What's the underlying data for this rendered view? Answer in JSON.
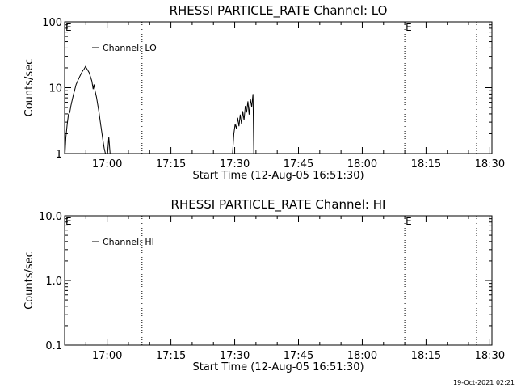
{
  "footer_timestamp": "19-Oct-2021 02:21",
  "chart_data": [
    {
      "type": "line",
      "title": "RHESSI PARTICLE_RATE Channel: LO",
      "xlabel": "Start Time (12-Aug-05 16:51:30)",
      "ylabel": "Counts/sec",
      "yscale": "log",
      "ylim": [
        1,
        100
      ],
      "xlim_minutes": [
        -1.5,
        99
      ],
      "x_ticks": [
        {
          "label": "17:00",
          "minute": 8.5
        },
        {
          "label": "17:15",
          "minute": 23.5
        },
        {
          "label": "17:30",
          "minute": 38.5
        },
        {
          "label": "17:45",
          "minute": 53.5
        },
        {
          "label": "18:00",
          "minute": 68.5
        },
        {
          "label": "18:15",
          "minute": 83.5
        },
        {
          "label": "18:30",
          "minute": 98.5
        }
      ],
      "y_ticks": [
        {
          "label": "1",
          "value": 1
        },
        {
          "label": "10",
          "value": 10
        },
        {
          "label": "100",
          "value": 100
        }
      ],
      "legend": {
        "label": "Channel: LO",
        "position": "top-left"
      },
      "event_lines": [
        {
          "minute": 16.7,
          "label": ""
        },
        {
          "minute": 78.5,
          "label": "E"
        },
        {
          "minute": 95.4,
          "label": ""
        }
      ],
      "edge_markers": [
        {
          "minute": -1.5,
          "label": "E"
        }
      ],
      "series": [
        {
          "name": "Channel: LO",
          "segments": [
            [
              [
                -1.4,
                1.0
              ],
              [
                -1.2,
                1.8
              ],
              [
                -0.9,
                2.8
              ],
              [
                -0.6,
                3.9
              ],
              [
                -0.3,
                4.2
              ],
              [
                0.0,
                5.4
              ],
              [
                0.3,
                6.6
              ],
              [
                0.6,
                8.0
              ],
              [
                0.9,
                9.4
              ],
              [
                1.2,
                11.2
              ],
              [
                1.6,
                12.8
              ],
              [
                2.0,
                14.5
              ],
              [
                2.4,
                16.4
              ],
              [
                2.8,
                18.2
              ],
              [
                3.1,
                19.2
              ],
              [
                3.4,
                20.9
              ],
              [
                3.7,
                19.5
              ],
              [
                4.0,
                18.1
              ],
              [
                4.3,
                16.8
              ],
              [
                4.6,
                14.5
              ],
              [
                4.9,
                12.6
              ],
              [
                5.2,
                9.5
              ],
              [
                5.4,
                11.2
              ],
              [
                5.7,
                8.7
              ],
              [
                6.0,
                7.1
              ],
              [
                6.3,
                5.4
              ],
              [
                6.6,
                4.2
              ],
              [
                6.9,
                3.0
              ],
              [
                7.2,
                2.2
              ],
              [
                7.5,
                1.6
              ],
              [
                7.8,
                1.2
              ],
              [
                8.1,
                1.0
              ]
            ],
            [
              [
                8.6,
                1.0
              ],
              [
                8.9,
                1.8
              ],
              [
                9.2,
                1.0
              ]
            ],
            [
              [
                38.0,
                1.0
              ],
              [
                38.3,
                2.0
              ],
              [
                38.6,
                2.8
              ],
              [
                38.9,
                2.4
              ],
              [
                39.2,
                3.5
              ],
              [
                39.5,
                2.6
              ],
              [
                39.8,
                3.9
              ],
              [
                40.1,
                2.8
              ],
              [
                40.4,
                4.4
              ],
              [
                40.7,
                3.2
              ],
              [
                41.0,
                5.3
              ],
              [
                41.3,
                4.2
              ],
              [
                41.6,
                6.2
              ],
              [
                41.9,
                3.9
              ],
              [
                42.2,
                6.7
              ],
              [
                42.5,
                5.1
              ],
              [
                42.8,
                8.0
              ],
              [
                43.0,
                1.0
              ]
            ]
          ]
        }
      ]
    },
    {
      "type": "line",
      "title": "RHESSI PARTICLE_RATE Channel: HI",
      "xlabel": "Start Time (12-Aug-05 16:51:30)",
      "ylabel": "Counts/sec",
      "yscale": "log",
      "ylim": [
        0.1,
        10
      ],
      "xlim_minutes": [
        -1.5,
        99
      ],
      "x_ticks": [
        {
          "label": "17:00",
          "minute": 8.5
        },
        {
          "label": "17:15",
          "minute": 23.5
        },
        {
          "label": "17:30",
          "minute": 38.5
        },
        {
          "label": "17:45",
          "minute": 53.5
        },
        {
          "label": "18:00",
          "minute": 68.5
        },
        {
          "label": "18:15",
          "minute": 83.5
        },
        {
          "label": "18:30",
          "minute": 98.5
        }
      ],
      "y_ticks": [
        {
          "label": "0.1",
          "value": 0.1
        },
        {
          "label": "1.0",
          "value": 1
        },
        {
          "label": "10.0",
          "value": 10
        }
      ],
      "legend": {
        "label": "Channel: HI",
        "position": "top-left"
      },
      "event_lines": [
        {
          "minute": 16.7,
          "label": ""
        },
        {
          "minute": 78.5,
          "label": "E"
        },
        {
          "minute": 95.4,
          "label": ""
        }
      ],
      "edge_markers": [
        {
          "minute": -1.5,
          "label": "E"
        }
      ],
      "series": [
        {
          "name": "Channel: HI",
          "segments": []
        }
      ]
    }
  ]
}
